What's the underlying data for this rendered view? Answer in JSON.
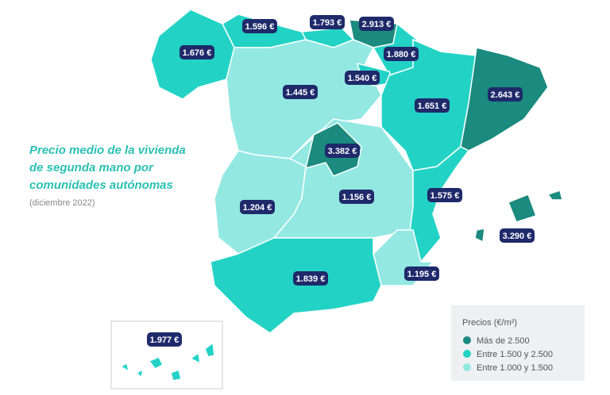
{
  "title_lines": [
    "Precio medio de la vivienda",
    "de segunda mano por",
    "comunidades autónomas"
  ],
  "subtitle": "(diciembre 2022)",
  "legend": {
    "title": "Precios (€/m²)",
    "items": [
      {
        "label": "Más de 2.500",
        "color": "#1b8a7f"
      },
      {
        "label": "Entre 1.500 y 2.500",
        "color": "#22d3c5"
      },
      {
        "label": "Entre 1.000 y 1.500",
        "color": "#93e8e2"
      }
    ]
  },
  "regions": [
    {
      "price": "1.676 €",
      "color": "#22d3c5"
    },
    {
      "price": "1.596 €",
      "color": "#22d3c5"
    },
    {
      "price": "1.793 €",
      "color": "#22d3c5"
    },
    {
      "price": "2.913 €",
      "color": "#1b8a7f"
    },
    {
      "price": "1.880 €",
      "color": "#22d3c5"
    },
    {
      "price": "1.445 €",
      "color": "#93e8e2"
    },
    {
      "price": "1.540 €",
      "color": "#22d3c5"
    },
    {
      "price": "1.651 €",
      "color": "#22d3c5"
    },
    {
      "price": "2.643 €",
      "color": "#1b8a7f"
    },
    {
      "price": "3.382 €",
      "color": "#1b8a7f"
    },
    {
      "price": "1.204 €",
      "color": "#93e8e2"
    },
    {
      "price": "1.156 €",
      "color": "#93e8e2"
    },
    {
      "price": "1.575 €",
      "color": "#22d3c5"
    },
    {
      "price": "3.290 €",
      "color": "#1b8a7f"
    },
    {
      "price": "1.839 €",
      "color": "#22d3c5"
    },
    {
      "price": "1.195 €",
      "color": "#93e8e2"
    },
    {
      "price": "1.977 €",
      "color": "#22d3c5"
    }
  ]
}
